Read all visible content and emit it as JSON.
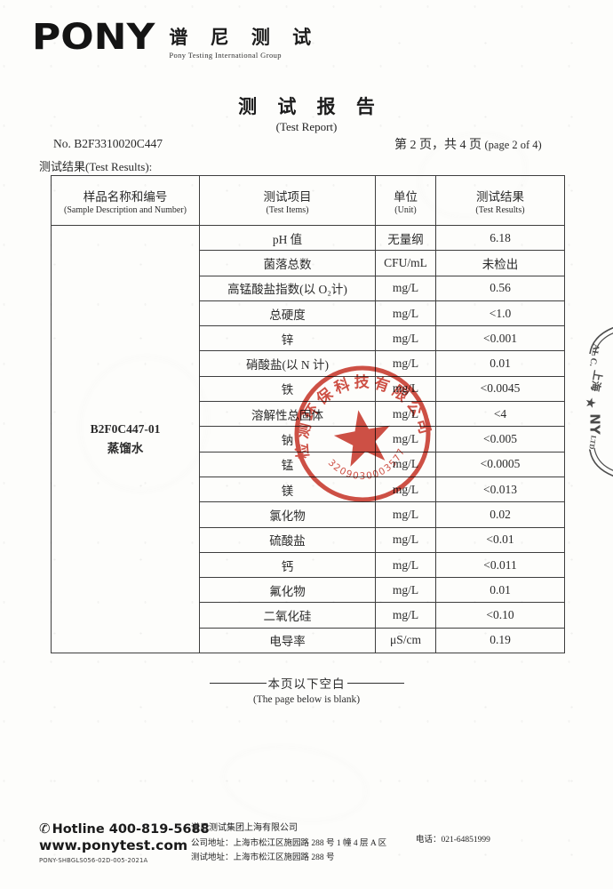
{
  "header": {
    "logo_en": "PONY",
    "logo_cn": "谱 尼 测 试",
    "logo_sub": "Pony Testing International Group"
  },
  "title": {
    "cn": "测 试 报 告",
    "en": "(Test Report)"
  },
  "meta": {
    "report_no": "No. B2F3310020C447",
    "page_info_cn": "第 2 页，共 4 页",
    "page_info_en": "(page 2 of 4)",
    "results_label": "测试结果(Test Results):"
  },
  "table": {
    "headers": [
      {
        "cn": "样品名称和编号",
        "en": "(Sample Description and Number)"
      },
      {
        "cn": "测试项目",
        "en": "(Test Items)"
      },
      {
        "cn": "单位",
        "en": "(Unit)"
      },
      {
        "cn": "测试结果",
        "en": "(Test Results)"
      }
    ],
    "sample": {
      "code": "B2F0C447-01",
      "name": "蒸馏水"
    },
    "rows": [
      {
        "item": "pH 值",
        "unit": "无量纲",
        "result": "6.18"
      },
      {
        "item": "菌落总数",
        "unit": "CFU/mL",
        "result": "未检出"
      },
      {
        "item": "高锰酸盐指数(以 O₂计)",
        "unit": "mg/L",
        "result": "0.56"
      },
      {
        "item": "总硬度",
        "unit": "mg/L",
        "result": "<1.0"
      },
      {
        "item": "锌",
        "unit": "mg/L",
        "result": "<0.001"
      },
      {
        "item": "硝酸盐(以 N 计)",
        "unit": "mg/L",
        "result": "0.01"
      },
      {
        "item": "铁",
        "unit": "mg/L",
        "result": "<0.0045"
      },
      {
        "item": "溶解性总固体",
        "unit": "mg/L",
        "result": "<4"
      },
      {
        "item": "钠",
        "unit": "mg/L",
        "result": "<0.005"
      },
      {
        "item": "锰",
        "unit": "mg/L",
        "result": "<0.0005"
      },
      {
        "item": "镁",
        "unit": "mg/L",
        "result": "<0.013"
      },
      {
        "item": "氯化物",
        "unit": "mg/L",
        "result": "0.02"
      },
      {
        "item": "硫酸盐",
        "unit": "mg/L",
        "result": "<0.01"
      },
      {
        "item": "钙",
        "unit": "mg/L",
        "result": "<0.011"
      },
      {
        "item": "氟化物",
        "unit": "mg/L",
        "result": "0.01"
      },
      {
        "item": "二氧化硅",
        "unit": "mg/L",
        "result": "<0.10"
      },
      {
        "item": "电导率",
        "unit": "μS/cm",
        "result": "0.19"
      }
    ]
  },
  "blank_note": {
    "cn": "本页以下空白",
    "en": "(The page below is blank)"
  },
  "seal": {
    "arc_text": "检测环保科技有限公司",
    "number": "3209030003577",
    "color": "#c9372c"
  },
  "edge_stamp": {
    "line1": "AL C.",
    "line2": "上海",
    "star": "★",
    "line3": "NY",
    "line4": "LTD."
  },
  "footer": {
    "phone_icon": "✆",
    "hotline": "Hotline 400-819-5688",
    "website": "www.ponytest.com",
    "doc_code": "PONY-SHBGLS056-02D-005-2021A",
    "company": "谱尼测试集团上海有限公司",
    "company_address": "公司地址：上海市松江区施园路 288 号 1 幢 4 层 A 区",
    "test_address": "测试地址：上海市松江区施园路 288 号",
    "phone": "电话：021-64851999"
  }
}
